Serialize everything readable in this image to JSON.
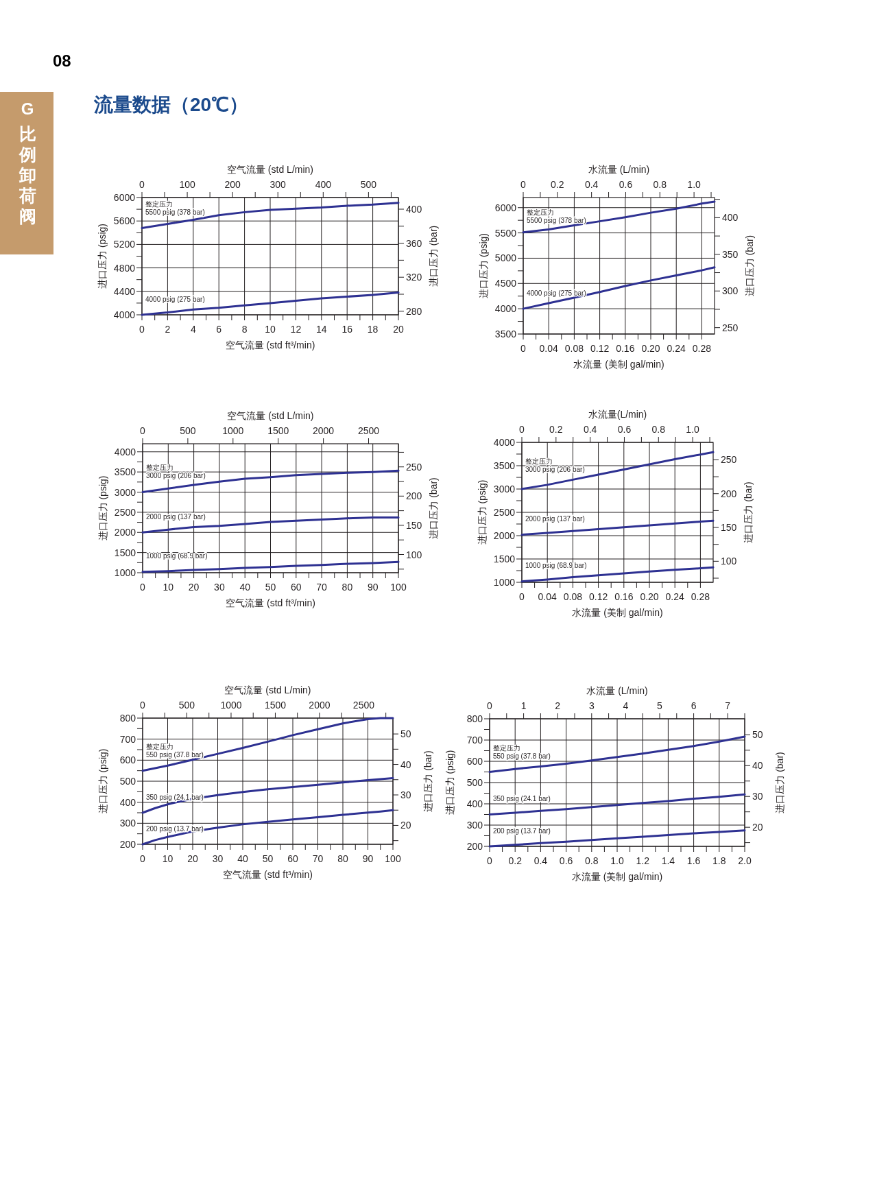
{
  "chart_data": [
    {
      "type": "other",
      "title": "流量数据（20℃）",
      "annotations": [
        "08",
        "G",
        "比例卸荷阀"
      ]
    },
    {
      "type": "line",
      "xlabel": "空气流量 (std ft³/min)",
      "x2label": "空气流量 (std L/min)",
      "ylabel": "进口压力 (psig)",
      "y2label": "进口压力 (bar)",
      "grid": true,
      "annotations": [
        "整定压力"
      ],
      "xlim": [
        0,
        20
      ],
      "ylim": [
        4000,
        6000
      ],
      "x2lim": [
        0,
        566
      ],
      "y2lim": [
        275.8,
        413.7
      ],
      "xticks": [
        0,
        {
          "value": 1,
          "label": null
        },
        2,
        {
          "value": 3,
          "label": null
        },
        4,
        {
          "value": 5,
          "label": null
        },
        6,
        {
          "value": 7,
          "label": null
        },
        8,
        {
          "value": 9,
          "label": null
        },
        10,
        {
          "value": 11,
          "label": null
        },
        12,
        {
          "value": 13,
          "label": null
        },
        14,
        {
          "value": 15,
          "label": null
        },
        16,
        {
          "value": 17,
          "label": null
        },
        18,
        {
          "value": 19,
          "label": null
        },
        20
      ],
      "yticks": [
        4000,
        {
          "value": 4200,
          "label": null
        },
        4400,
        {
          "value": 4600,
          "label": null
        },
        4800,
        {
          "value": 5000,
          "label": null
        },
        5200,
        {
          "value": 5400,
          "label": null
        },
        5600,
        {
          "value": 5800,
          "label": null
        },
        6000
      ],
      "x2ticks": [
        0,
        {
          "value": 50,
          "label": null
        },
        100,
        {
          "value": 150,
          "label": null
        },
        200,
        {
          "value": 250,
          "label": null
        },
        300,
        {
          "value": 350,
          "label": null
        },
        400,
        {
          "value": 450,
          "label": null
        },
        500,
        {
          "value": 550,
          "label": null
        }
      ],
      "y2ticks": [
        280,
        {
          "value": 300,
          "label": null
        },
        320,
        {
          "value": 340,
          "label": null
        },
        360,
        {
          "value": 380,
          "label": null
        },
        400
      ],
      "x": [
        0,
        2,
        4,
        6,
        8,
        10,
        12,
        14,
        16,
        18,
        20
      ],
      "series": [
        {
          "name": "5500 psig (378 bar)",
          "color": "#2e3192",
          "values": [
            5480,
            5550,
            5620,
            5700,
            5750,
            5790,
            5810,
            5830,
            5860,
            5880,
            5910
          ]
        },
        {
          "name": "4000 psig (275 bar)",
          "color": "#2e3192",
          "values": [
            4000,
            4040,
            4090,
            4120,
            4160,
            4200,
            4240,
            4280,
            4310,
            4340,
            4380
          ]
        }
      ]
    },
    {
      "type": "line",
      "xlabel": "水流量 (美制 gal/min)",
      "x2label": "水流量 (L/min)",
      "ylabel": "进口压力 (psig)",
      "y2label": "进口压力 (bar)",
      "grid": true,
      "annotations": [
        "整定压力"
      ],
      "xlim": [
        0,
        0.3
      ],
      "ylim": [
        3500,
        6200
      ],
      "x2lim": [
        0,
        1.12
      ],
      "y2lim": [
        241.3,
        427.5
      ],
      "xticks": [
        0,
        {
          "value": 0.02,
          "label": null
        },
        0.04,
        {
          "value": 0.06,
          "label": null
        },
        0.08,
        {
          "value": 0.1,
          "label": null
        },
        0.12,
        {
          "value": 0.14,
          "label": null
        },
        0.16,
        {
          "value": 0.18,
          "label": null
        },
        {
          "value": 0.2,
          "label": "0.20"
        },
        {
          "value": 0.22,
          "label": null
        },
        0.24,
        {
          "value": 0.26,
          "label": null
        },
        0.28
      ],
      "yticks": [
        3500,
        {
          "value": 3750,
          "label": null
        },
        4000,
        {
          "value": 4250,
          "label": null
        },
        4500,
        {
          "value": 4750,
          "label": null
        },
        5000,
        {
          "value": 5250,
          "label": null
        },
        5500,
        {
          "value": 5750,
          "label": null
        },
        6000
      ],
      "x2ticks": [
        0,
        {
          "value": 0.1,
          "label": null
        },
        0.2,
        {
          "value": 0.3,
          "label": null
        },
        0.4,
        {
          "value": 0.5,
          "label": null
        },
        0.6,
        {
          "value": 0.7,
          "label": null
        },
        0.8,
        {
          "value": 0.9,
          "label": null
        },
        {
          "value": 1,
          "label": "1.0"
        },
        {
          "value": 1.1,
          "label": null
        }
      ],
      "y2ticks": [
        250,
        {
          "value": 275,
          "label": null
        },
        300,
        {
          "value": 325,
          "label": null
        },
        350,
        {
          "value": 375,
          "label": null
        },
        400,
        {
          "value": 425,
          "label": null
        }
      ],
      "x": [
        0,
        0.04,
        0.08,
        0.12,
        0.16,
        0.2,
        0.24,
        0.28,
        0.3
      ],
      "series": [
        {
          "name": "5500 psig (378 bar)",
          "color": "#2e3192",
          "values": [
            5510,
            5570,
            5650,
            5730,
            5810,
            5900,
            5980,
            6080,
            6120
          ]
        },
        {
          "name": "4000 psig (275 bar)",
          "color": "#2e3192",
          "values": [
            4000,
            4110,
            4220,
            4330,
            4450,
            4560,
            4660,
            4760,
            4820
          ]
        }
      ]
    },
    {
      "type": "line",
      "xlabel": "空气流量 (std ft³/min)",
      "x2label": "空气流量 (std L/min)",
      "ylabel": "进口压力 (psig)",
      "y2label": "进口压力 (bar)",
      "grid": true,
      "annotations": [
        "整定压力"
      ],
      "xlim": [
        0,
        100
      ],
      "ylim": [
        1000,
        4200
      ],
      "x2lim": [
        0,
        2830
      ],
      "y2lim": [
        68.9,
        289.6
      ],
      "xticks": [
        0,
        {
          "value": 5,
          "label": null
        },
        10,
        {
          "value": 15,
          "label": null
        },
        20,
        {
          "value": 25,
          "label": null
        },
        30,
        {
          "value": 35,
          "label": null
        },
        40,
        {
          "value": 45,
          "label": null
        },
        50,
        {
          "value": 55,
          "label": null
        },
        60,
        {
          "value": 65,
          "label": null
        },
        70,
        {
          "value": 75,
          "label": null
        },
        80,
        {
          "value": 85,
          "label": null
        },
        90,
        {
          "value": 95,
          "label": null
        },
        100
      ],
      "yticks": [
        1000,
        {
          "value": 1250,
          "label": null
        },
        1500,
        {
          "value": 1750,
          "label": null
        },
        2000,
        {
          "value": 2250,
          "label": null
        },
        2500,
        {
          "value": 2750,
          "label": null
        },
        3000,
        {
          "value": 3250,
          "label": null
        },
        3500,
        {
          "value": 3750,
          "label": null
        },
        4000
      ],
      "x2ticks": [
        0,
        500,
        1000,
        1500,
        2000,
        2500
      ],
      "y2ticks": [
        {
          "value": 75,
          "label": null
        },
        100,
        {
          "value": 125,
          "label": null
        },
        150,
        {
          "value": 175,
          "label": null
        },
        200,
        {
          "value": 225,
          "label": null
        },
        250,
        {
          "value": 275,
          "label": null
        }
      ],
      "x": [
        0,
        10,
        20,
        30,
        40,
        50,
        60,
        70,
        80,
        90,
        100
      ],
      "series": [
        {
          "name": "3000 psig (206 bar)",
          "color": "#2e3192",
          "values": [
            3000,
            3090,
            3180,
            3260,
            3330,
            3370,
            3420,
            3450,
            3480,
            3500,
            3530
          ]
        },
        {
          "name": "2000 psig (137 bar)",
          "color": "#2e3192",
          "values": [
            2000,
            2070,
            2130,
            2160,
            2210,
            2260,
            2290,
            2320,
            2350,
            2370,
            2370
          ]
        },
        {
          "name": "1000 psig (68.9 bar)",
          "color": "#2e3192",
          "values": [
            1020,
            1040,
            1070,
            1090,
            1120,
            1140,
            1170,
            1190,
            1220,
            1240,
            1270
          ]
        }
      ]
    },
    {
      "type": "line",
      "xlabel": "水流量 (美制 gal/min)",
      "x2label": "水流量(L/min)",
      "ylabel": "进口压力 (psig)",
      "y2label": "进口压力 (bar)",
      "grid": true,
      "annotations": [
        "整定压力"
      ],
      "xlim": [
        0,
        0.3
      ],
      "ylim": [
        1000,
        4000
      ],
      "x2lim": [
        0,
        1.12
      ],
      "y2lim": [
        68.9,
        275.8
      ],
      "xticks": [
        0,
        {
          "value": 0.02,
          "label": null
        },
        0.04,
        {
          "value": 0.06,
          "label": null
        },
        0.08,
        {
          "value": 0.1,
          "label": null
        },
        0.12,
        {
          "value": 0.14,
          "label": null
        },
        0.16,
        {
          "value": 0.18,
          "label": null
        },
        {
          "value": 0.2,
          "label": "0.20"
        },
        {
          "value": 0.22,
          "label": null
        },
        0.24,
        {
          "value": 0.26,
          "label": null
        },
        0.28
      ],
      "yticks": [
        1000,
        {
          "value": 1250,
          "label": null
        },
        1500,
        {
          "value": 1750,
          "label": null
        },
        2000,
        {
          "value": 2250,
          "label": null
        },
        2500,
        {
          "value": 2750,
          "label": null
        },
        3000,
        {
          "value": 3250,
          "label": null
        },
        3500,
        {
          "value": 3750,
          "label": null
        },
        4000
      ],
      "x2ticks": [
        0,
        {
          "value": 0.1,
          "label": null
        },
        0.2,
        {
          "value": 0.3,
          "label": null
        },
        0.4,
        {
          "value": 0.5,
          "label": null
        },
        0.6,
        {
          "value": 0.7,
          "label": null
        },
        0.8,
        {
          "value": 0.9,
          "label": null
        },
        {
          "value": 1,
          "label": "1.0"
        },
        {
          "value": 1.1,
          "label": null
        }
      ],
      "y2ticks": [
        {
          "value": 75,
          "label": null
        },
        100,
        {
          "value": 125,
          "label": null
        },
        150,
        {
          "value": 175,
          "label": null
        },
        200,
        {
          "value": 225,
          "label": null
        },
        250
      ],
      "x": [
        0,
        0.04,
        0.08,
        0.12,
        0.16,
        0.2,
        0.24,
        0.28,
        0.3
      ],
      "series": [
        {
          "name": "3000 psig (206 bar)",
          "color": "#2e3192",
          "values": [
            3000,
            3090,
            3200,
            3310,
            3420,
            3530,
            3640,
            3740,
            3790
          ]
        },
        {
          "name": "2000 psig (137 bar)",
          "color": "#2e3192",
          "values": [
            2020,
            2060,
            2100,
            2140,
            2180,
            2220,
            2260,
            2300,
            2320
          ]
        },
        {
          "name": "1000 psig (68.9 bar)",
          "color": "#2e3192",
          "values": [
            1020,
            1060,
            1110,
            1150,
            1190,
            1230,
            1270,
            1300,
            1320
          ]
        }
      ]
    },
    {
      "type": "line",
      "xlabel": "空气流量 (std ft³/min)",
      "x2label": "空气流量 (std L/min)",
      "ylabel": "进口压力 (psig)",
      "y2label": "进口压力 (bar)",
      "grid": true,
      "annotations": [
        "整定压力"
      ],
      "xlim": [
        0,
        100
      ],
      "ylim": [
        200,
        800
      ],
      "x2lim": [
        0,
        2830
      ],
      "y2lim": [
        13.8,
        55.2
      ],
      "xticks": [
        0,
        {
          "value": 5,
          "label": null
        },
        10,
        {
          "value": 15,
          "label": null
        },
        20,
        {
          "value": 25,
          "label": null
        },
        30,
        {
          "value": 35,
          "label": null
        },
        40,
        {
          "value": 45,
          "label": null
        },
        50,
        {
          "value": 55,
          "label": null
        },
        60,
        {
          "value": 65,
          "label": null
        },
        70,
        {
          "value": 75,
          "label": null
        },
        80,
        {
          "value": 85,
          "label": null
        },
        90,
        {
          "value": 95,
          "label": null
        },
        100
      ],
      "yticks": [
        200,
        {
          "value": 250,
          "label": null
        },
        300,
        {
          "value": 350,
          "label": null
        },
        400,
        {
          "value": 450,
          "label": null
        },
        500,
        {
          "value": 550,
          "label": null
        },
        600,
        {
          "value": 650,
          "label": null
        },
        700,
        {
          "value": 750,
          "label": null
        },
        800
      ],
      "x2ticks": [
        0,
        {
          "value": 250,
          "label": null
        },
        500,
        {
          "value": 750,
          "label": null
        },
        1000,
        {
          "value": 1250,
          "label": null
        },
        1500,
        {
          "value": 1750,
          "label": null
        },
        2000,
        {
          "value": 2250,
          "label": null
        },
        2500,
        {
          "value": 2750,
          "label": null
        }
      ],
      "y2ticks": [
        {
          "value": 15,
          "label": null
        },
        20,
        {
          "value": 25,
          "label": null
        },
        30,
        {
          "value": 35,
          "label": null
        },
        40,
        {
          "value": 45,
          "label": null
        },
        50
      ],
      "x": [
        0,
        5,
        10,
        15,
        20,
        30,
        40,
        50,
        60,
        70,
        80,
        90,
        95,
        100
      ],
      "series": [
        {
          "name": "550 psig (37.8 bar)",
          "color": "#2e3192",
          "values": [
            550,
            562,
            574,
            588,
            602,
            630,
            658,
            688,
            719,
            747,
            775,
            795,
            800,
            800
          ]
        },
        {
          "name": "350 psig (24.1 bar)",
          "color": "#2e3192",
          "values": [
            350,
            372,
            390,
            404,
            416,
            434,
            449,
            462,
            472,
            483,
            494,
            505,
            510,
            515
          ]
        },
        {
          "name": "200 psig (13.7 bar)",
          "color": "#2e3192",
          "values": [
            200,
            220,
            235,
            248,
            261,
            279,
            295,
            307,
            318,
            329,
            340,
            351,
            356,
            362
          ]
        }
      ]
    },
    {
      "type": "line",
      "xlabel": "水流量 (美制 gal/min)",
      "x2label": "水流量 (L/min)",
      "ylabel": "进口压力 (psig)",
      "y2label": "进口压力 (bar)",
      "grid": true,
      "annotations": [
        "整定压力"
      ],
      "xlim": [
        0,
        2
      ],
      "ylim": [
        200,
        800
      ],
      "x2lim": [
        0,
        7.5
      ],
      "y2lim": [
        13.8,
        55.2
      ],
      "xticks": [
        0,
        {
          "value": 0.1,
          "label": null
        },
        0.2,
        {
          "value": 0.3,
          "label": null
        },
        0.4,
        {
          "value": 0.5,
          "label": null
        },
        0.6,
        {
          "value": 0.7,
          "label": null
        },
        0.8,
        {
          "value": 0.9,
          "label": null
        },
        {
          "value": 1,
          "label": "1.0"
        },
        {
          "value": 1.1,
          "label": null
        },
        1.2,
        {
          "value": 1.3,
          "label": null
        },
        1.4,
        {
          "value": 1.5,
          "label": null
        },
        1.6,
        {
          "value": 1.7,
          "label": null
        },
        1.8,
        {
          "value": 1.9,
          "label": null
        },
        {
          "value": 2,
          "label": "2.0"
        }
      ],
      "yticks": [
        200,
        {
          "value": 250,
          "label": null
        },
        300,
        {
          "value": 350,
          "label": null
        },
        400,
        {
          "value": 450,
          "label": null
        },
        500,
        {
          "value": 550,
          "label": null
        },
        600,
        {
          "value": 650,
          "label": null
        },
        700,
        {
          "value": 750,
          "label": null
        },
        800
      ],
      "x2ticks": [
        0,
        {
          "value": 0.5,
          "label": null
        },
        1,
        {
          "value": 1.5,
          "label": null
        },
        2,
        {
          "value": 2.5,
          "label": null
        },
        3,
        {
          "value": 3.5,
          "label": null
        },
        4,
        {
          "value": 4.5,
          "label": null
        },
        5,
        {
          "value": 5.5,
          "label": null
        },
        6,
        {
          "value": 6.5,
          "label": null
        },
        7,
        {
          "value": 7.5,
          "label": null
        }
      ],
      "y2ticks": [
        {
          "value": 15,
          "label": null
        },
        20,
        {
          "value": 25,
          "label": null
        },
        30,
        {
          "value": 35,
          "label": null
        },
        40,
        {
          "value": 45,
          "label": null
        },
        50
      ],
      "x": [
        0,
        0.2,
        0.4,
        0.6,
        0.8,
        1,
        1.2,
        1.4,
        1.6,
        1.8,
        2
      ],
      "series": [
        {
          "name": "550 psig (37.8 bar)",
          "color": "#2e3192",
          "values": [
            550,
            564,
            576,
            589,
            604,
            620,
            636,
            654,
            672,
            693,
            716
          ]
        },
        {
          "name": "350 psig (24.1 bar)",
          "color": "#2e3192",
          "values": [
            350,
            358,
            367,
            375,
            385,
            394,
            404,
            413,
            424,
            433,
            444
          ]
        },
        {
          "name": "200 psig (13.7 bar)",
          "color": "#2e3192",
          "values": [
            200,
            207,
            215,
            222,
            230,
            238,
            245,
            253,
            261,
            268,
            275
          ]
        }
      ]
    }
  ]
}
